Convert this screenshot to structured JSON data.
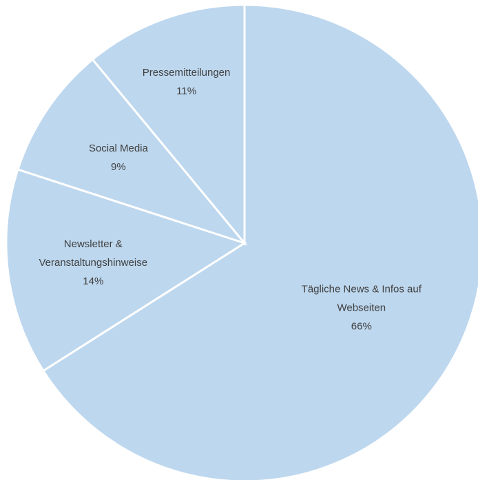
{
  "chart_data": {
    "type": "pie",
    "title": "",
    "slice_color": "#bdd7ee",
    "border_color": "#ffffff",
    "label_color": "#404040",
    "slices": [
      {
        "label_lines": [
          "Tägliche News & Infos auf",
          "Webseiten"
        ],
        "percent_label": "66%",
        "value": 66
      },
      {
        "label_lines": [
          "Newsletter &",
          "Veranstaltungshinweise"
        ],
        "percent_label": "14%",
        "value": 14
      },
      {
        "label_lines": [
          "Social Media"
        ],
        "percent_label": "9%",
        "value": 9
      },
      {
        "label_lines": [
          "Pressemitteilungen"
        ],
        "percent_label": "11%",
        "value": 11
      }
    ]
  }
}
